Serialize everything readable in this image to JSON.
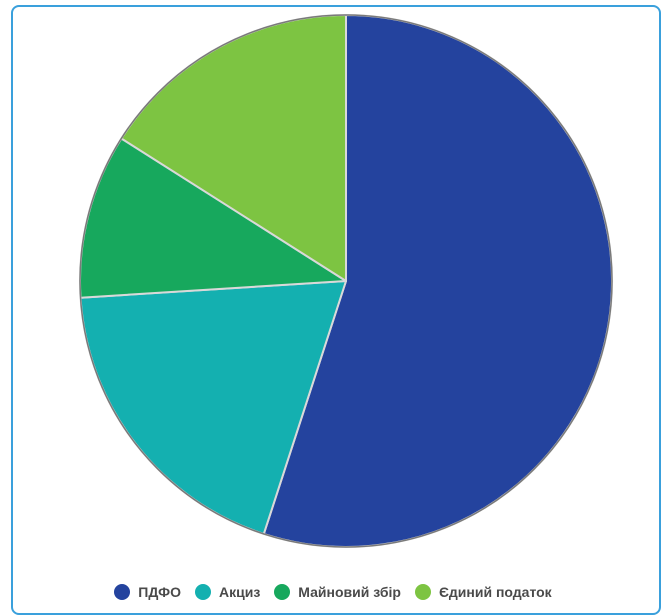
{
  "chart_data": {
    "type": "pie",
    "title": "",
    "legend_position": "bottom",
    "slices": [
      {
        "label": "ПДФО",
        "value": 55,
        "color": "#24439e"
      },
      {
        "label": "Акциз",
        "value": 19,
        "color": "#14b0b0"
      },
      {
        "label": "Майновий збір",
        "value": 10,
        "color": "#17a85d"
      },
      {
        "label": "Єдиний податок",
        "value": 16,
        "color": "#7dc442"
      }
    ]
  }
}
